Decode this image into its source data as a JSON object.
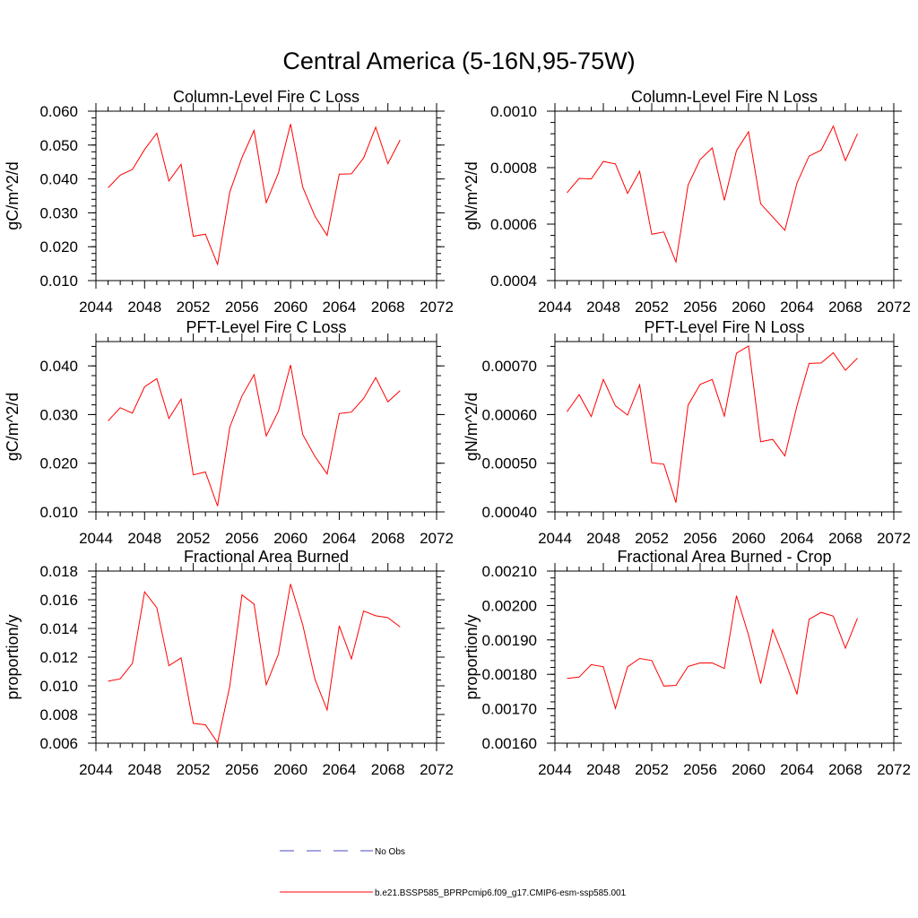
{
  "main_title": "Central America (5-16N,95-75W)",
  "colors": {
    "model": "#ff0000",
    "obs": "#4a4ac8",
    "axis": "#000000"
  },
  "legend": {
    "obs_label": "No Obs",
    "model_label": "b.e21.BSSP585_BPRPcmip6.f09_g17.CMIP6-esm-ssp585.001"
  },
  "chart_data": [
    {
      "type": "line",
      "title": "Column-Level Fire C Loss",
      "ylabel": "gC/m^2/d",
      "xlim": [
        2044,
        2072
      ],
      "ylim": [
        0.01,
        0.06
      ],
      "xticks": [
        "2044",
        "2048",
        "2052",
        "2056",
        "2060",
        "2064",
        "2068",
        "2072"
      ],
      "yticks": [
        {
          "v": 0.01,
          "label": "0.010"
        },
        {
          "v": 0.02,
          "label": "0.020"
        },
        {
          "v": 0.03,
          "label": "0.030"
        },
        {
          "v": 0.04,
          "label": "0.040"
        },
        {
          "v": 0.05,
          "label": "0.050"
        },
        {
          "v": 0.06,
          "label": "0.060"
        }
      ],
      "x": [
        2045,
        2046,
        2047,
        2048,
        2049,
        2050,
        2051,
        2052,
        2053,
        2054,
        2055,
        2056,
        2057,
        2058,
        2059,
        2060,
        2061,
        2062,
        2063,
        2064,
        2065,
        2066,
        2067,
        2068,
        2069
      ],
      "values": [
        0.0374,
        0.0411,
        0.0428,
        0.0487,
        0.0535,
        0.0394,
        0.0443,
        0.0231,
        0.0237,
        0.0148,
        0.0361,
        0.0463,
        0.0543,
        0.033,
        0.0418,
        0.0562,
        0.0376,
        0.029,
        0.0233,
        0.0414,
        0.0415,
        0.0462,
        0.0553,
        0.0445,
        0.0515
      ]
    },
    {
      "type": "line",
      "title": "Column-Level Fire N Loss",
      "ylabel": "gN/m^2/d",
      "xlim": [
        2044,
        2072
      ],
      "ylim": [
        0.0004,
        0.001
      ],
      "xticks": [
        "2044",
        "2048",
        "2052",
        "2056",
        "2060",
        "2064",
        "2068",
        "2072"
      ],
      "yticks": [
        {
          "v": 0.0004,
          "label": "0.0004"
        },
        {
          "v": 0.0006,
          "label": "0.0006"
        },
        {
          "v": 0.0008,
          "label": "0.0008"
        },
        {
          "v": 0.001,
          "label": "0.0010"
        }
      ],
      "x": [
        2045,
        2046,
        2047,
        2048,
        2049,
        2050,
        2051,
        2052,
        2053,
        2054,
        2055,
        2056,
        2057,
        2058,
        2059,
        2060,
        2061,
        2062,
        2063,
        2064,
        2065,
        2066,
        2067,
        2068,
        2069
      ],
      "values": [
        0.000711,
        0.000762,
        0.00076,
        0.000822,
        0.000813,
        0.000709,
        0.000787,
        0.000564,
        0.000572,
        0.000466,
        0.000738,
        0.000829,
        0.00087,
        0.000684,
        0.00086,
        0.000927,
        0.000672,
        0.000625,
        0.000578,
        0.000745,
        0.000841,
        0.000862,
        0.000947,
        0.000825,
        0.00092
      ]
    },
    {
      "type": "line",
      "title": "PFT-Level Fire C Loss",
      "ylabel": "gC/m^2/d",
      "xlim": [
        2044,
        2072
      ],
      "ylim": [
        0.01,
        0.045
      ],
      "xticks": [
        "2044",
        "2048",
        "2052",
        "2056",
        "2060",
        "2064",
        "2068",
        "2072"
      ],
      "yticks": [
        {
          "v": 0.01,
          "label": "0.010"
        },
        {
          "v": 0.02,
          "label": "0.020"
        },
        {
          "v": 0.03,
          "label": "0.030"
        },
        {
          "v": 0.04,
          "label": "0.040"
        }
      ],
      "x": [
        2045,
        2046,
        2047,
        2048,
        2049,
        2050,
        2051,
        2052,
        2053,
        2054,
        2055,
        2056,
        2057,
        2058,
        2059,
        2060,
        2061,
        2062,
        2063,
        2064,
        2065,
        2066,
        2067,
        2068,
        2069
      ],
      "values": [
        0.0287,
        0.0314,
        0.0303,
        0.0357,
        0.0374,
        0.0292,
        0.0332,
        0.0176,
        0.0182,
        0.0112,
        0.0274,
        0.0338,
        0.0382,
        0.0256,
        0.0307,
        0.0402,
        0.0259,
        0.0214,
        0.0178,
        0.0302,
        0.0305,
        0.0333,
        0.0376,
        0.0326,
        0.0349
      ]
    },
    {
      "type": "line",
      "title": "PFT-Level Fire N Loss",
      "ylabel": "gN/m^2/d",
      "xlim": [
        2044,
        2072
      ],
      "ylim": [
        0.0004,
        0.00075
      ],
      "xticks": [
        "2044",
        "2048",
        "2052",
        "2056",
        "2060",
        "2064",
        "2068",
        "2072"
      ],
      "yticks": [
        {
          "v": 0.0004,
          "label": "0.00040"
        },
        {
          "v": 0.0005,
          "label": "0.00050"
        },
        {
          "v": 0.0006,
          "label": "0.00060"
        },
        {
          "v": 0.0007,
          "label": "0.00070"
        }
      ],
      "x": [
        2045,
        2046,
        2047,
        2048,
        2049,
        2050,
        2051,
        2052,
        2053,
        2054,
        2055,
        2056,
        2057,
        2058,
        2059,
        2060,
        2061,
        2062,
        2063,
        2064,
        2065,
        2066,
        2067,
        2068,
        2069
      ],
      "values": [
        0.000606,
        0.000641,
        0.000596,
        0.000672,
        0.000618,
        0.000599,
        0.000661,
        0.000501,
        0.000498,
        0.000419,
        0.000619,
        0.000662,
        0.000672,
        0.000597,
        0.000726,
        0.000741,
        0.000544,
        0.000549,
        0.000515,
        0.000618,
        0.000705,
        0.000706,
        0.000727,
        0.000691,
        0.000716
      ]
    },
    {
      "type": "line",
      "title": "Fractional Area Burned",
      "ylabel": "proportion/y",
      "xlim": [
        2044,
        2072
      ],
      "ylim": [
        0.006,
        0.018
      ],
      "xticks": [
        "2044",
        "2048",
        "2052",
        "2056",
        "2060",
        "2064",
        "2068",
        "2072"
      ],
      "yticks": [
        {
          "v": 0.006,
          "label": "0.006"
        },
        {
          "v": 0.008,
          "label": "0.008"
        },
        {
          "v": 0.01,
          "label": "0.010"
        },
        {
          "v": 0.012,
          "label": "0.012"
        },
        {
          "v": 0.014,
          "label": "0.014"
        },
        {
          "v": 0.016,
          "label": "0.016"
        },
        {
          "v": 0.018,
          "label": "0.018"
        }
      ],
      "x": [
        2045,
        2046,
        2047,
        2048,
        2049,
        2050,
        2051,
        2052,
        2053,
        2054,
        2055,
        2056,
        2057,
        2058,
        2059,
        2060,
        2061,
        2062,
        2063,
        2064,
        2065,
        2066,
        2067,
        2068,
        2069
      ],
      "values": [
        0.01032,
        0.01049,
        0.01157,
        0.01655,
        0.01545,
        0.0114,
        0.01195,
        0.00738,
        0.00728,
        0.00604,
        0.00997,
        0.01634,
        0.0157,
        0.01007,
        0.01222,
        0.0171,
        0.01425,
        0.01046,
        0.00831,
        0.01418,
        0.01188,
        0.01522,
        0.01488,
        0.01475,
        0.0141
      ]
    },
    {
      "type": "line",
      "title": "Fractional Area Burned - Crop",
      "ylabel": "proportion/y",
      "xlim": [
        2044,
        2072
      ],
      "ylim": [
        0.0016,
        0.0021
      ],
      "xticks": [
        "2044",
        "2048",
        "2052",
        "2056",
        "2060",
        "2064",
        "2068",
        "2072"
      ],
      "yticks": [
        {
          "v": 0.0016,
          "label": "0.00160"
        },
        {
          "v": 0.0017,
          "label": "0.00170"
        },
        {
          "v": 0.0018,
          "label": "0.00180"
        },
        {
          "v": 0.0019,
          "label": "0.00190"
        },
        {
          "v": 0.002,
          "label": "0.00200"
        },
        {
          "v": 0.0021,
          "label": "0.00210"
        }
      ],
      "x": [
        2045,
        2046,
        2047,
        2048,
        2049,
        2050,
        2051,
        2052,
        2053,
        2054,
        2055,
        2056,
        2057,
        2058,
        2059,
        2060,
        2061,
        2062,
        2063,
        2064,
        2065,
        2066,
        2067,
        2068,
        2069
      ],
      "values": [
        0.001788,
        0.001792,
        0.001828,
        0.001822,
        0.001701,
        0.001822,
        0.001846,
        0.00184,
        0.001766,
        0.001768,
        0.001823,
        0.001833,
        0.001833,
        0.001817,
        0.002028,
        0.001914,
        0.001773,
        0.00193,
        0.001841,
        0.001742,
        0.00196,
        0.00198,
        0.001969,
        0.001876,
        0.001963
      ]
    }
  ]
}
